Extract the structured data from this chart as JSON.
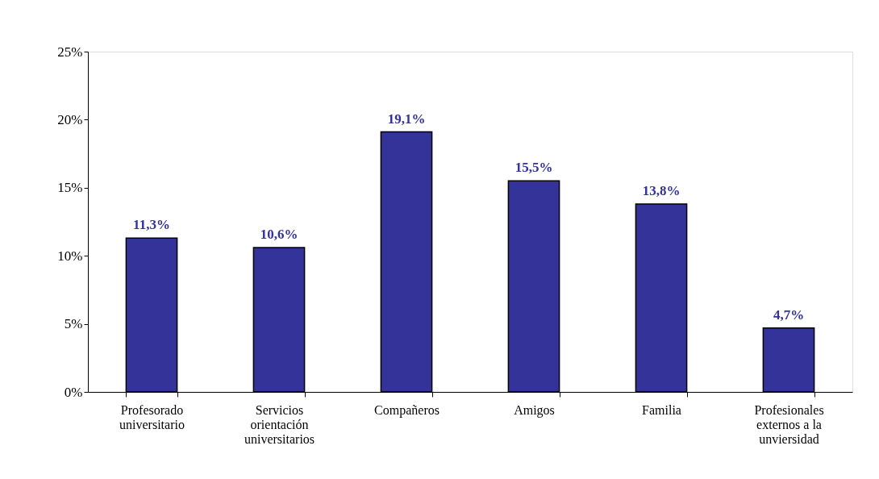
{
  "chart_data": {
    "type": "bar",
    "categories": [
      "Profesorado\nuniversitario",
      "Servicios\norientación\nuniversitarios",
      "Compañeros",
      "Amigos",
      "Familia",
      "Profesionales\nexternos a la\nunviersidad"
    ],
    "values": [
      11.3,
      10.6,
      19.1,
      15.5,
      13.8,
      4.7
    ],
    "value_labels": [
      "11,3%",
      "10,6%",
      "19,1%",
      "15,5%",
      "13,8%",
      "4,7%"
    ],
    "color": "#333399",
    "ylim": [
      0,
      25
    ],
    "yticks": [
      {
        "value": 0,
        "label": "0%"
      },
      {
        "value": 5,
        "label": "5%"
      },
      {
        "value": 10,
        "label": "10%"
      },
      {
        "value": 15,
        "label": "15%"
      },
      {
        "value": 20,
        "label": "20%"
      },
      {
        "value": 25,
        "label": "25%"
      }
    ],
    "grid": false
  }
}
